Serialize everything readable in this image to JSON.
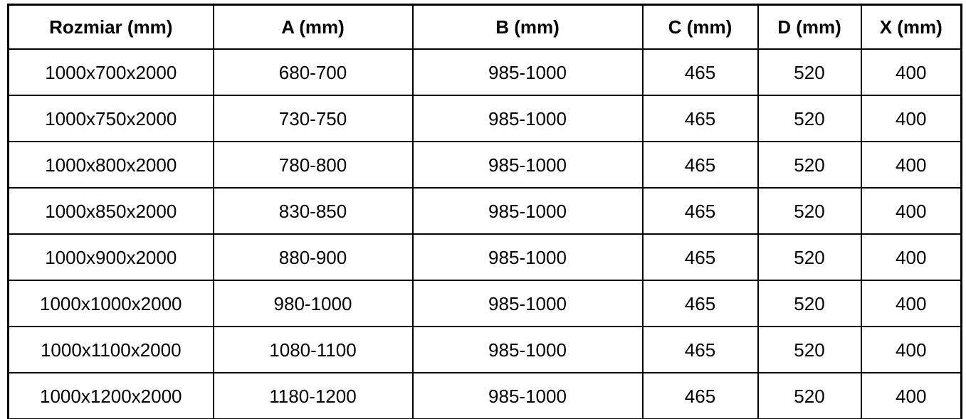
{
  "table": {
    "columns": [
      "Rozmiar (mm)",
      "A (mm)",
      "B (mm)",
      "C (mm)",
      "D (mm)",
      "X (mm)"
    ],
    "rows": [
      [
        "1000x700x2000",
        "680-700",
        "985-1000",
        "465",
        "520",
        "400"
      ],
      [
        "1000x750x2000",
        "730-750",
        "985-1000",
        "465",
        "520",
        "400"
      ],
      [
        "1000x800x2000",
        "780-800",
        "985-1000",
        "465",
        "520",
        "400"
      ],
      [
        "1000x850x2000",
        "830-850",
        "985-1000",
        "465",
        "520",
        "400"
      ],
      [
        "1000x900x2000",
        "880-900",
        "985-1000",
        "465",
        "520",
        "400"
      ],
      [
        "1000x1000x2000",
        "980-1000",
        "985-1000",
        "465",
        "520",
        "400"
      ],
      [
        "1000x1100x2000",
        "1080-1100",
        "985-1000",
        "465",
        "520",
        "400"
      ],
      [
        "1000x1200x2000",
        "1180-1200",
        "985-1000",
        "465",
        "520",
        "400"
      ]
    ]
  },
  "colors": {
    "border": "#000000",
    "text": "#000000",
    "background": "#ffffff"
  }
}
